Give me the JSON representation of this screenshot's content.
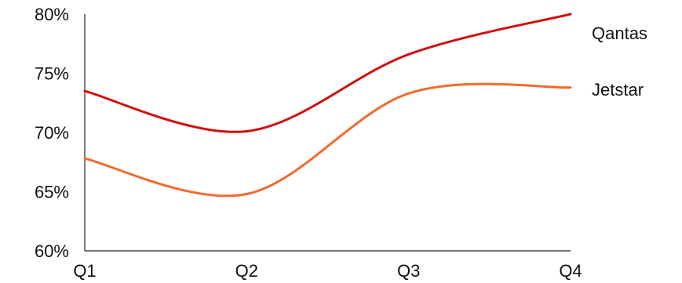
{
  "chart_data": {
    "type": "line",
    "title": "",
    "xlabel": "",
    "ylabel": "",
    "categories": [
      "Q1",
      "Q2",
      "Q3",
      "Q4"
    ],
    "ylim": [
      60,
      80
    ],
    "yticks": [
      60,
      65,
      70,
      75,
      80
    ],
    "ytick_labels": [
      "60%",
      "65%",
      "70%",
      "75%",
      "80%"
    ],
    "grid": false,
    "legend": "right-end labels",
    "series": [
      {
        "name": "Qantas",
        "color": "#d10f0f",
        "values": [
          73.5,
          70.1,
          76.6,
          80.0
        ]
      },
      {
        "name": "Jetstar",
        "color": "#f26a2e",
        "values": [
          67.8,
          64.8,
          73.3,
          73.8
        ]
      }
    ]
  }
}
